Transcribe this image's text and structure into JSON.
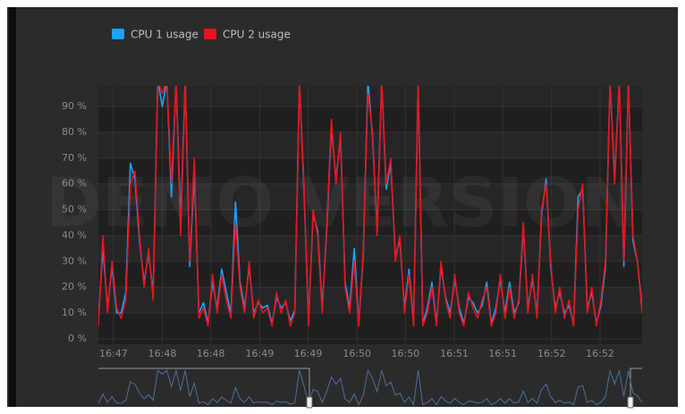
{
  "chart_data": {
    "type": "line",
    "watermark": "DEMO VERSION",
    "xlim": [
      0,
      119
    ],
    "xticks": [
      {
        "value": 3.3,
        "label": "16:47"
      },
      {
        "value": 14.0,
        "label": "16:48"
      },
      {
        "value": 24.6,
        "label": "16:48"
      },
      {
        "value": 35.3,
        "label": "16:49"
      },
      {
        "value": 45.9,
        "label": "16:49"
      },
      {
        "value": 56.6,
        "label": "16:50"
      },
      {
        "value": 67.2,
        "label": "16:50"
      },
      {
        "value": 77.9,
        "label": "16:51"
      },
      {
        "value": 88.5,
        "label": "16:51"
      },
      {
        "value": 99.2,
        "label": "16:52"
      },
      {
        "value": 109.8,
        "label": "16:52"
      }
    ],
    "ylim": [
      0,
      98
    ],
    "yticks": [
      {
        "value": 0,
        "label": "0 %"
      },
      {
        "value": 10,
        "label": "10 %"
      },
      {
        "value": 20,
        "label": "20 %"
      },
      {
        "value": 30,
        "label": "30 %"
      },
      {
        "value": 40,
        "label": "40 %"
      },
      {
        "value": 50,
        "label": "50 %"
      },
      {
        "value": 60,
        "label": "60 %"
      },
      {
        "value": 70,
        "label": "70 %"
      },
      {
        "value": 80,
        "label": "80 %"
      },
      {
        "value": 90,
        "label": "90 %"
      }
    ],
    "grid": true,
    "legend": "top-left",
    "series": [
      {
        "name": "CPU 1 usage",
        "color": "#1aa3ff",
        "values": [
          8,
          35,
          12,
          28,
          10,
          10,
          18,
          68,
          62,
          38,
          22,
          33,
          18,
          100,
          90,
          100,
          55,
          100,
          45,
          100,
          28,
          65,
          10,
          14,
          6,
          22,
          12,
          27,
          18,
          10,
          53,
          22,
          12,
          28,
          10,
          14,
          12,
          13,
          6,
          16,
          12,
          14,
          7,
          11,
          100,
          58,
          7,
          48,
          42,
          12,
          43,
          82,
          62,
          78,
          22,
          12,
          35,
          6,
          33,
          100,
          78,
          42,
          100,
          58,
          68,
          32,
          38,
          12,
          27,
          6,
          100,
          6,
          12,
          22,
          6,
          28,
          16,
          10,
          23,
          12,
          6,
          16,
          14,
          10,
          13,
          22,
          6,
          12,
          23,
          10,
          22,
          10,
          14,
          43,
          12,
          23,
          10,
          48,
          62,
          28,
          12,
          18,
          10,
          13,
          6,
          55,
          58,
          12,
          18,
          6,
          13,
          28,
          100,
          62,
          100,
          28,
          100,
          38,
          30,
          12
        ]
      },
      {
        "name": "CPU 2 usage",
        "color": "#e8141c",
        "values": [
          5,
          40,
          10,
          30,
          12,
          8,
          15,
          60,
          65,
          40,
          20,
          35,
          15,
          100,
          95,
          100,
          60,
          100,
          40,
          100,
          30,
          70,
          8,
          12,
          5,
          25,
          10,
          25,
          15,
          8,
          45,
          20,
          10,
          30,
          8,
          15,
          10,
          12,
          5,
          18,
          10,
          15,
          5,
          10,
          100,
          60,
          5,
          50,
          40,
          10,
          45,
          85,
          60,
          80,
          20,
          10,
          30,
          5,
          35,
          95,
          80,
          40,
          100,
          60,
          70,
          30,
          40,
          10,
          25,
          5,
          100,
          5,
          10,
          20,
          5,
          30,
          15,
          8,
          25,
          10,
          5,
          18,
          12,
          8,
          15,
          20,
          5,
          10,
          25,
          8,
          20,
          8,
          15,
          45,
          10,
          25,
          8,
          50,
          60,
          30,
          10,
          20,
          8,
          15,
          5,
          50,
          60,
          10,
          20,
          5,
          15,
          30,
          100,
          60,
          100,
          30,
          100,
          40,
          30,
          10
        ]
      }
    ]
  }
}
